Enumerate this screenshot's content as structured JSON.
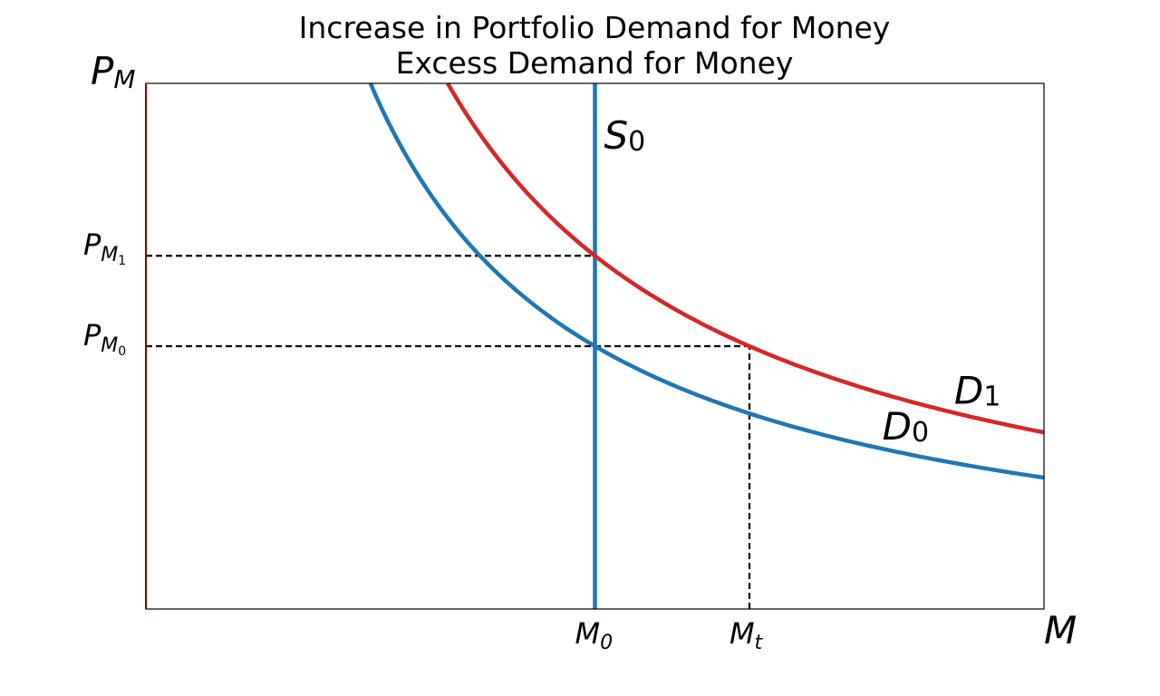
{
  "chart_data": {
    "type": "line",
    "title": [
      "Increase in Portfolio Demand for Money",
      "Excess Demand for Money"
    ],
    "xlabel": "M",
    "ylabel": {
      "main": "P",
      "sub": "M"
    },
    "xlim": [
      0,
      10
    ],
    "ylim": [
      0,
      10
    ],
    "grid": false,
    "series": [
      {
        "name": "S",
        "sub": "0",
        "color": "#1f77b4",
        "type": "vertical",
        "x": 5
      },
      {
        "name": "D",
        "sub": "0",
        "color": "#1f77b4",
        "k": 25,
        "x": [
          2.5,
          3.0,
          3.5,
          4.0,
          4.5,
          5.0,
          6.0,
          7.0,
          8.0,
          9.0,
          10.0
        ],
        "y": [
          10.0,
          8.33,
          7.14,
          6.25,
          5.56,
          5.0,
          4.17,
          3.57,
          3.13,
          2.78,
          2.5
        ]
      },
      {
        "name": "D",
        "sub": "1",
        "color": "#d62728",
        "k": 33.6,
        "x": [
          3.36,
          4.0,
          4.5,
          5.0,
          5.5,
          6.0,
          6.72,
          7.5,
          8.5,
          9.5,
          10.0
        ],
        "y": [
          10.0,
          8.4,
          7.47,
          6.72,
          6.11,
          5.6,
          5.0,
          4.48,
          3.95,
          3.54,
          3.36
        ]
      }
    ],
    "reference_lines": [
      {
        "axis": "y",
        "value": 6.72,
        "x_to": 5
      },
      {
        "axis": "y",
        "value": 5.0,
        "x_to": 6.72
      },
      {
        "axis": "x",
        "value": 6.72,
        "y_to": 5.0
      }
    ],
    "xticks": [
      {
        "value": 5,
        "main": "M",
        "sub": "0"
      },
      {
        "value": 6.72,
        "main": "M",
        "sub": "t"
      }
    ],
    "yticks": [
      {
        "value": 6.72,
        "main": "P",
        "sub": "M",
        "subsub": "1"
      },
      {
        "value": 5.0,
        "main": "P",
        "sub": "M",
        "subsub": "0"
      }
    ],
    "colors": {
      "blue": "#1f77b4",
      "red": "#d62728",
      "left_spine": "#8b0000"
    }
  }
}
